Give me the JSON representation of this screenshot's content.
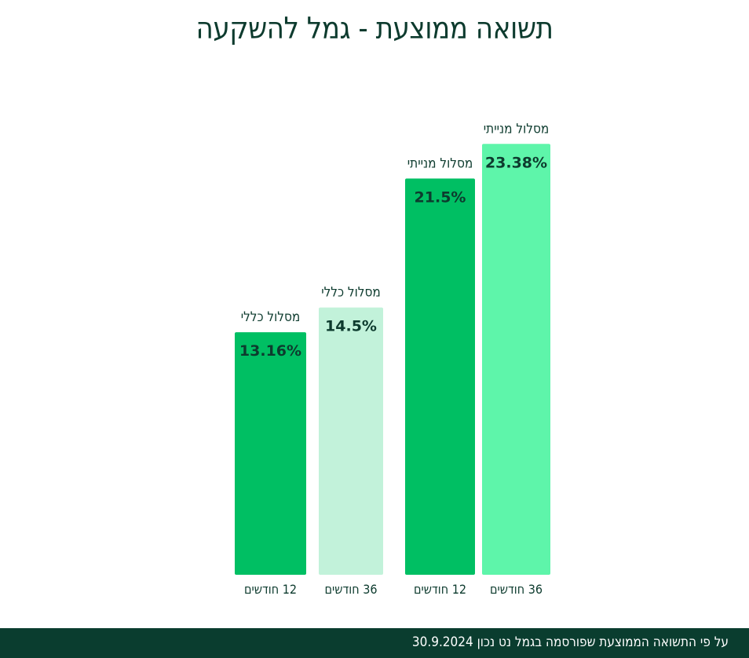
{
  "title": "תשואה ממוצעת - גמל להשקעה",
  "footer": {
    "note": "על פי התשואה הממוצעת שפורסמה בגמל נט נכון 30.9.2024"
  },
  "colors": {
    "title": "#0d3b2e",
    "footer_bg": "#0a3d2f",
    "label_text": "#0d3b2e"
  },
  "chart_data": {
    "type": "bar",
    "title": "תשואה ממוצעת - גמל להשקעה",
    "categories": [
      "12 חודשים",
      "36 חודשים",
      "12 חודשים",
      "36 חודשים"
    ],
    "groups": [
      "מסלול כללי",
      "מסלול כללי",
      "מסלול מנייתי",
      "מסלול מנייתי"
    ],
    "values": [
      13.16,
      14.5,
      21.5,
      23.38
    ],
    "value_labels": [
      "13.16%",
      "14.5%",
      "21.5%",
      "23.38%"
    ],
    "colors": [
      "#00bf63",
      "#c2f2da",
      "#00bf63",
      "#5ef5aa"
    ],
    "unit": "%",
    "grid": false,
    "legend": "none"
  }
}
